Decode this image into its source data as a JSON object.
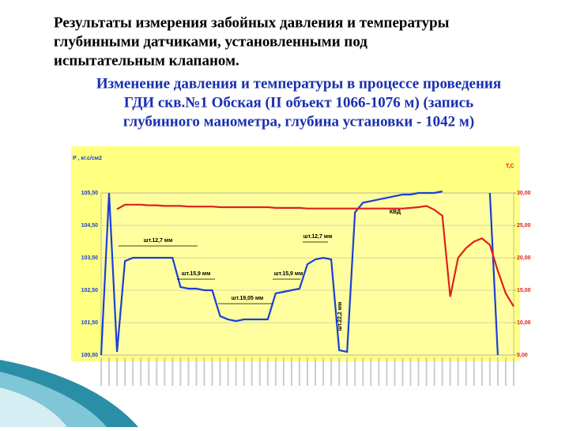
{
  "header": {
    "lines": [
      "Результаты измерения забойных давления и температуры",
      "глубинными датчиками, установленными под",
      "испытательным клапаном."
    ]
  },
  "subtitle": {
    "lines": [
      "Изменение давления и температуры в процессе проведения",
      "ГДИ скв.№1 Обская (II объект 1066-1076 м)  (запись",
      "глубинного манометра, глубина установки - 1042 м)"
    ]
  },
  "chart_data": {
    "type": "line",
    "ylabel": "P , кг.с/см2",
    "y2label": "T,C",
    "ylim": [
      100.5,
      105.5
    ],
    "yticks": [
      {
        "value": 100.5,
        "label": "100,50"
      },
      {
        "value": 101.5,
        "label": "101,50"
      },
      {
        "value": 102.5,
        "label": "102,50"
      },
      {
        "value": 103.5,
        "label": "103,50"
      },
      {
        "value": 104.5,
        "label": "104,50"
      },
      {
        "value": 105.5,
        "label": "105,50"
      }
    ],
    "y2lim": [
      5,
      30
    ],
    "y2ticks": [
      {
        "value": 5,
        "label": "5,00"
      },
      {
        "value": 10,
        "label": "10,00"
      },
      {
        "value": 15,
        "label": "15,00"
      },
      {
        "value": 20,
        "label": "20,00"
      },
      {
        "value": 25,
        "label": "25,00"
      },
      {
        "value": 30,
        "label": "30,00"
      }
    ],
    "grid": true,
    "categories": [
      null,
      null,
      null,
      null,
      null,
      null,
      null,
      null,
      null,
      null,
      null,
      null,
      null,
      null,
      null,
      null,
      null,
      null,
      null,
      null,
      null,
      null,
      null,
      null,
      null,
      null,
      null,
      null,
      null,
      null,
      null,
      null,
      null,
      null,
      null,
      null,
      null,
      null,
      null,
      null,
      null,
      null,
      null,
      null,
      null,
      null,
      null,
      null,
      null,
      null,
      null,
      null,
      null
    ],
    "series": [
      {
        "color": "#1a3fd6",
        "values": [
          100.5,
          105.5,
          100.6,
          103.4,
          103.5,
          103.5,
          103.5,
          103.5,
          103.5,
          103.5,
          102.6,
          102.55,
          102.55,
          102.5,
          102.5,
          101.7,
          101.6,
          101.55,
          101.6,
          101.6,
          101.6,
          101.6,
          102.4,
          102.45,
          102.5,
          102.55,
          103.3,
          103.45,
          103.5,
          103.45,
          100.65,
          100.6,
          104.9,
          105.2,
          105.25,
          105.3,
          105.35,
          105.4,
          105.45,
          105.45,
          105.5,
          105.5,
          105.5,
          105.55,
          null,
          null,
          null,
          null,
          null,
          105.5,
          100.5,
          null,
          null
        ]
      },
      {
        "color": "#e0201b",
        "axis": "y2",
        "values": [
          null,
          null,
          27.5,
          28.2,
          28.2,
          28.2,
          28.1,
          28.1,
          28.0,
          28.0,
          28.0,
          27.9,
          27.9,
          27.9,
          27.9,
          27.8,
          27.8,
          27.8,
          27.8,
          27.8,
          27.8,
          27.8,
          27.7,
          27.7,
          27.7,
          27.7,
          27.6,
          27.6,
          27.6,
          27.6,
          27.6,
          27.6,
          27.6,
          27.6,
          27.6,
          27.6,
          27.6,
          27.6,
          27.6,
          27.7,
          27.8,
          28.0,
          27.4,
          26.5,
          14.0,
          20.0,
          21.5,
          22.5,
          23.0,
          22.0,
          18.0,
          14.5,
          12.5
        ]
      }
    ],
    "annotations": [
      "шт.12,7 мм",
      "шт.15,9 мм",
      "шт.19,05 мм",
      "шт.15,9 мм",
      "шт.12,7 мм",
      "шт.22,2 мм",
      "КВД"
    ]
  }
}
